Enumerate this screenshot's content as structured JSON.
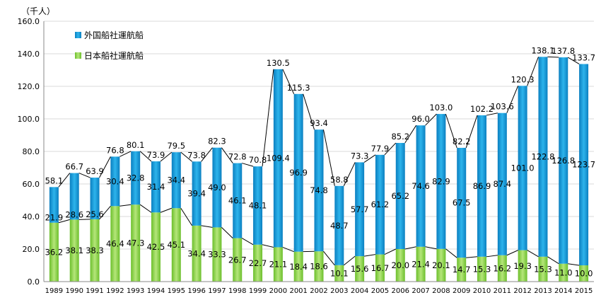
{
  "chart_data": {
    "type": "bar",
    "stacked": true,
    "unit_label": "（千人）",
    "categories": [
      "1989",
      "1990",
      "1991",
      "1992",
      "1993",
      "1994",
      "1995",
      "1996",
      "1997",
      "1998",
      "1999",
      "2000",
      "2001",
      "2002",
      "2003",
      "2004",
      "2005",
      "2006",
      "2007",
      "2008",
      "2009",
      "2010",
      "2011",
      "2012",
      "2013",
      "2014",
      "2015"
    ],
    "series": [
      {
        "name": "日本船社運航船",
        "color": "#92d050",
        "values": [
          36.2,
          38.1,
          38.3,
          46.4,
          47.3,
          42.5,
          45.1,
          34.4,
          33.3,
          26.7,
          22.7,
          21.1,
          18.4,
          18.6,
          10.1,
          15.6,
          16.7,
          20.0,
          21.4,
          20.1,
          14.7,
          15.3,
          16.2,
          19.3,
          15.3,
          11.0,
          10.0
        ],
        "value_labels": [
          "36.2",
          "38.1",
          "38.3",
          "46.4",
          "47.3",
          "42.5",
          "45.1",
          "34.4",
          "33.3",
          "26.7",
          "22.7",
          "21.1",
          "18.4",
          "18.6",
          "10.1",
          "15.6",
          "16.7",
          "20.0",
          "21.4",
          "20.1",
          "14.7",
          "15.3",
          "16.2",
          "19.3",
          "15.3",
          "11.0",
          "10.0"
        ]
      },
      {
        "name": "外国船社運航船",
        "color": "#1f9fdd",
        "values": [
          21.9,
          28.6,
          25.6,
          30.4,
          32.8,
          31.4,
          34.4,
          39.4,
          49.0,
          46.1,
          48.1,
          109.4,
          96.9,
          74.8,
          48.7,
          57.7,
          61.2,
          65.2,
          74.6,
          82.9,
          67.5,
          86.9,
          87.4,
          101.0,
          122.8,
          126.8,
          123.7
        ],
        "value_labels": [
          "21.9",
          "28.6",
          "25.6",
          "30.4",
          "32.8",
          "31.4",
          "34.4",
          "39.4",
          "49.0",
          "46.1",
          "48.1",
          "109.4",
          "96.9",
          "74.8",
          "48.7",
          "57.7",
          "61.2",
          "65.2",
          "74.6",
          "82.9",
          "67.5",
          "86.9",
          "87.4",
          "101.0",
          "122.8",
          "126.8",
          "123.7"
        ]
      }
    ],
    "totals": [
      58.1,
      66.7,
      63.9,
      76.8,
      80.1,
      73.9,
      79.5,
      73.8,
      82.3,
      72.8,
      70.8,
      130.5,
      115.3,
      93.4,
      58.8,
      73.3,
      77.9,
      85.2,
      96.0,
      103.0,
      82.2,
      102.2,
      103.6,
      120.3,
      138.1,
      137.8,
      133.7
    ],
    "total_labels": [
      "58.1",
      "66.7",
      "63.9",
      "76.8",
      "80.1",
      "73.9",
      "79.5",
      "73.8",
      "82.3",
      "72.8",
      "70.8",
      "130.5",
      "115.3",
      "93.4",
      "58.8",
      "73.3",
      "77.9",
      "85.2",
      "96.0",
      "103.0",
      "82.2",
      "102.2",
      "103.6",
      "120.3",
      "138.1",
      "137.8",
      "133.7"
    ],
    "y_ticks": [
      "0.0",
      "20.0",
      "40.0",
      "60.0",
      "80.0",
      "100.0",
      "120.0",
      "140.0",
      "160.0"
    ],
    "ylim": [
      0,
      160
    ],
    "grid": true,
    "legend_position": "top-left",
    "series_lines": true
  }
}
